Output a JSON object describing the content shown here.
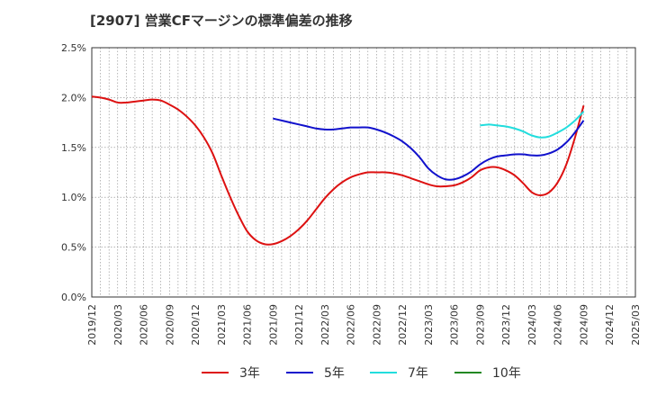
{
  "title": "[2907]  営業CFマージンの標準偏差の推移",
  "chart_data": {
    "type": "line",
    "title": "[2907]  営業CFマージンの標準偏差の推移",
    "xlabel": "",
    "ylabel": "",
    "ylim": [
      0,
      2.5
    ],
    "yticks": [
      "0.0%",
      "0.5%",
      "1.0%",
      "1.5%",
      "2.0%",
      "2.5%"
    ],
    "ytick_values": [
      0,
      0.5,
      1.0,
      1.5,
      2.0,
      2.5
    ],
    "xticks": [
      "2019/12",
      "2020/03",
      "2020/06",
      "2020/09",
      "2020/12",
      "2021/03",
      "2021/06",
      "2021/09",
      "2021/12",
      "2022/03",
      "2022/06",
      "2022/09",
      "2022/12",
      "2023/03",
      "2023/06",
      "2023/09",
      "2023/12",
      "2024/03",
      "2024/06",
      "2024/09",
      "2024/12",
      "2025/03"
    ],
    "grid": true,
    "legend_position": "bottom",
    "series": [
      {
        "name": "3年",
        "color": "#dd1111",
        "points": [
          [
            "2019/12",
            2.01
          ],
          [
            "2020/01",
            2.0
          ],
          [
            "2020/02",
            1.98
          ],
          [
            "2020/03",
            1.95
          ],
          [
            "2020/04",
            1.95
          ],
          [
            "2020/05",
            1.96
          ],
          [
            "2020/06",
            1.97
          ],
          [
            "2020/07",
            1.98
          ],
          [
            "2020/08",
            1.97
          ],
          [
            "2020/09",
            1.93
          ],
          [
            "2020/10",
            1.88
          ],
          [
            "2020/11",
            1.81
          ],
          [
            "2020/12",
            1.72
          ],
          [
            "2021/01",
            1.6
          ],
          [
            "2021/02",
            1.44
          ],
          [
            "2021/03",
            1.22
          ],
          [
            "2021/04",
            1.01
          ],
          [
            "2021/05",
            0.82
          ],
          [
            "2021/06",
            0.66
          ],
          [
            "2021/07",
            0.57
          ],
          [
            "2021/08",
            0.53
          ],
          [
            "2021/09",
            0.53
          ],
          [
            "2021/10",
            0.56
          ],
          [
            "2021/11",
            0.61
          ],
          [
            "2021/12",
            0.68
          ],
          [
            "2022/01",
            0.77
          ],
          [
            "2022/02",
            0.88
          ],
          [
            "2022/03",
            0.99
          ],
          [
            "2022/04",
            1.08
          ],
          [
            "2022/05",
            1.15
          ],
          [
            "2022/06",
            1.2
          ],
          [
            "2022/07",
            1.23
          ],
          [
            "2022/08",
            1.25
          ],
          [
            "2022/09",
            1.25
          ],
          [
            "2022/10",
            1.25
          ],
          [
            "2022/11",
            1.24
          ],
          [
            "2022/12",
            1.22
          ],
          [
            "2023/01",
            1.19
          ],
          [
            "2023/02",
            1.16
          ],
          [
            "2023/03",
            1.13
          ],
          [
            "2023/04",
            1.11
          ],
          [
            "2023/05",
            1.11
          ],
          [
            "2023/06",
            1.12
          ],
          [
            "2023/07",
            1.15
          ],
          [
            "2023/08",
            1.2
          ],
          [
            "2023/09",
            1.27
          ],
          [
            "2023/10",
            1.3
          ],
          [
            "2023/11",
            1.3
          ],
          [
            "2023/12",
            1.27
          ],
          [
            "2024/01",
            1.22
          ],
          [
            "2024/02",
            1.14
          ],
          [
            "2024/03",
            1.05
          ],
          [
            "2024/04",
            1.02
          ],
          [
            "2024/05",
            1.05
          ],
          [
            "2024/06",
            1.15
          ],
          [
            "2024/07",
            1.33
          ],
          [
            "2024/08",
            1.6
          ],
          [
            "2024/09",
            1.92
          ]
        ]
      },
      {
        "name": "5年",
        "color": "#1111cc",
        "points": [
          [
            "2021/09",
            1.79
          ],
          [
            "2021/10",
            1.77
          ],
          [
            "2021/11",
            1.75
          ],
          [
            "2021/12",
            1.73
          ],
          [
            "2022/01",
            1.71
          ],
          [
            "2022/02",
            1.69
          ],
          [
            "2022/03",
            1.68
          ],
          [
            "2022/04",
            1.68
          ],
          [
            "2022/05",
            1.69
          ],
          [
            "2022/06",
            1.7
          ],
          [
            "2022/07",
            1.7
          ],
          [
            "2022/08",
            1.7
          ],
          [
            "2022/09",
            1.68
          ],
          [
            "2022/10",
            1.65
          ],
          [
            "2022/11",
            1.61
          ],
          [
            "2022/12",
            1.56
          ],
          [
            "2023/01",
            1.49
          ],
          [
            "2023/02",
            1.4
          ],
          [
            "2023/03",
            1.29
          ],
          [
            "2023/04",
            1.22
          ],
          [
            "2023/05",
            1.18
          ],
          [
            "2023/06",
            1.18
          ],
          [
            "2023/07",
            1.21
          ],
          [
            "2023/08",
            1.26
          ],
          [
            "2023/09",
            1.33
          ],
          [
            "2023/10",
            1.38
          ],
          [
            "2023/11",
            1.41
          ],
          [
            "2023/12",
            1.42
          ],
          [
            "2024/01",
            1.43
          ],
          [
            "2024/02",
            1.43
          ],
          [
            "2024/03",
            1.42
          ],
          [
            "2024/04",
            1.42
          ],
          [
            "2024/05",
            1.44
          ],
          [
            "2024/06",
            1.48
          ],
          [
            "2024/07",
            1.55
          ],
          [
            "2024/08",
            1.65
          ],
          [
            "2024/09",
            1.77
          ]
        ]
      },
      {
        "name": "7年",
        "color": "#22dddd",
        "points": [
          [
            "2023/09",
            1.72
          ],
          [
            "2023/10",
            1.73
          ],
          [
            "2023/11",
            1.72
          ],
          [
            "2023/12",
            1.71
          ],
          [
            "2024/01",
            1.69
          ],
          [
            "2024/02",
            1.66
          ],
          [
            "2024/03",
            1.62
          ],
          [
            "2024/04",
            1.6
          ],
          [
            "2024/05",
            1.61
          ],
          [
            "2024/06",
            1.65
          ],
          [
            "2024/07",
            1.7
          ],
          [
            "2024/08",
            1.77
          ],
          [
            "2024/09",
            1.86
          ]
        ]
      },
      {
        "name": "10年",
        "color": "#228822",
        "points": []
      }
    ]
  }
}
